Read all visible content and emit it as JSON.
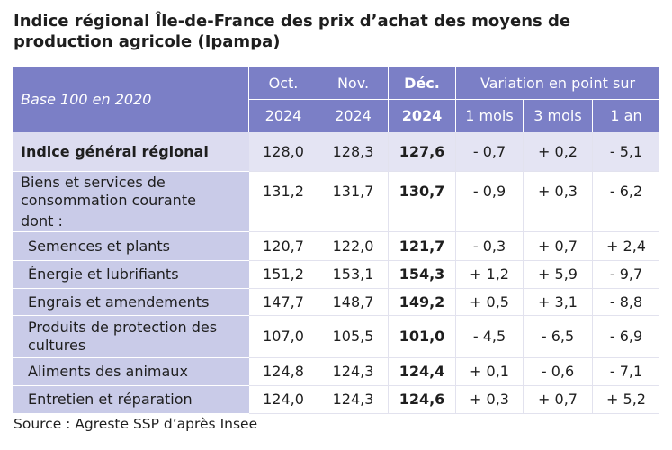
{
  "title": "Indice régional Île-de-France des prix d’achat des moyens de production agricole (Ipampa)",
  "table": {
    "header": {
      "base": "Base 100 en 2020",
      "months": [
        {
          "month": "Oct.",
          "year": "2024"
        },
        {
          "month": "Nov.",
          "year": "2024"
        },
        {
          "month": "Déc.",
          "year": "2024"
        }
      ],
      "variation": "Variation en point sur",
      "periods": [
        "1 mois",
        "3 mois",
        "1 an"
      ]
    },
    "rows": [
      {
        "label": "Indice général régional",
        "level": 0,
        "bold": true,
        "values": [
          "128,0",
          "128,3",
          "127,6",
          "- 0,7",
          "+ 0,2",
          "- 5,1"
        ]
      },
      {
        "label": "Biens et services de consommation courante",
        "level": 0,
        "values": [
          "131,2",
          "131,7",
          "130,7",
          "- 0,9",
          "+ 0,3",
          "- 6,2"
        ]
      },
      {
        "label": "dont :",
        "level": 0
      },
      {
        "label": "Semences et plants",
        "level": 1,
        "values": [
          "120,7",
          "122,0",
          "121,7",
          "- 0,3",
          "+ 0,7",
          "+ 2,4"
        ]
      },
      {
        "label": "Énergie et lubrifiants",
        "level": 1,
        "values": [
          "151,2",
          "153,1",
          "154,3",
          "+ 1,2",
          "+ 5,9",
          "- 9,7"
        ]
      },
      {
        "label": "Engrais et amendements",
        "level": 1,
        "values": [
          "147,7",
          "148,7",
          "149,2",
          "+ 0,5",
          "+ 3,1",
          "- 8,8"
        ]
      },
      {
        "label": "Produits de protection des cultures",
        "level": 1,
        "values": [
          "107,0",
          "105,5",
          "101,0",
          "- 4,5",
          "- 6,5",
          "- 6,9"
        ]
      },
      {
        "label": "Aliments des animaux",
        "level": 1,
        "values": [
          "124,8",
          "124,3",
          "124,4",
          "+ 0,1",
          "- 0,6",
          "- 7,1"
        ]
      },
      {
        "label": "Entretien et réparation",
        "level": 1,
        "values": [
          "124,0",
          "124,3",
          "124,6",
          "+ 0,3",
          "+ 0,7",
          "+ 5,2"
        ]
      }
    ]
  },
  "source": "Source : Agreste SSP d’après Insee"
}
